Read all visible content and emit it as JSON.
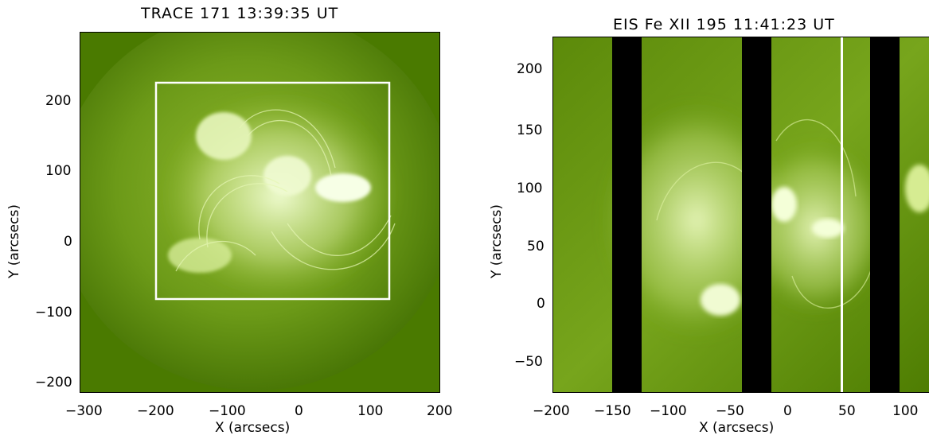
{
  "left_panel": {
    "title": "TRACE 171   13:39:35 UT",
    "xlabel": "X (arcsecs)",
    "ylabel": "Y (arcsecs)",
    "xticks": [
      "−300",
      "−200",
      "−100",
      "0",
      "100",
      "200"
    ],
    "yticks": [
      "200",
      "100",
      "0",
      "−100",
      "−200"
    ],
    "box_region": {
      "x": [
        -205,
        125
      ],
      "y": [
        -80,
        225
      ]
    }
  },
  "right_panel": {
    "title": "EIS Fe XII 195 11:41:23 UT",
    "xlabel": "X (arcsecs)",
    "ylabel": "Y (arcsecs)",
    "xticks": [
      "−200",
      "−150",
      "−100",
      "−50",
      "0",
      "50",
      "100"
    ],
    "yticks": [
      "200",
      "150",
      "100",
      "50",
      "0",
      "−50"
    ],
    "data_gaps_x": [
      [
        -150,
        -127
      ],
      [
        -40,
        -16
      ],
      [
        72,
        96
      ]
    ],
    "marker_line_x": 46
  },
  "colors": {
    "base": "#4a7a00",
    "bright": "#f4ffd8",
    "box": "#ffffff"
  }
}
